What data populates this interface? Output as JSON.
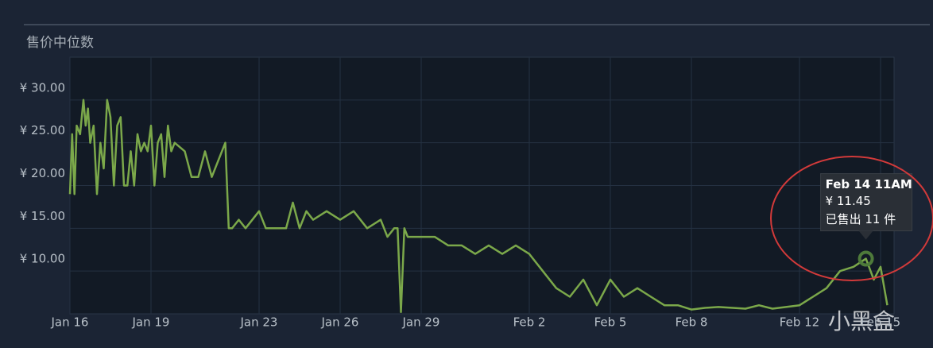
{
  "chart_data": {
    "type": "line",
    "title": "售价中位数",
    "x": [
      "Jan 16 12AM",
      "Jan 16 2AM",
      "Jan 16 4AM",
      "Jan 16 6AM",
      "Jan 16 9AM",
      "Jan 16 12PM",
      "Jan 16 2PM",
      "Jan 16 4PM",
      "Jan 16 6PM",
      "Jan 16 9PM",
      "Jan 17 12AM",
      "Jan 17 3AM",
      "Jan 17 6AM",
      "Jan 17 9AM",
      "Jan 17 12PM",
      "Jan 17 3PM",
      "Jan 17 6PM",
      "Jan 17 9PM",
      "Jan 18 12AM",
      "Jan 18 3AM",
      "Jan 18 6AM",
      "Jan 18 9AM",
      "Jan 18 12PM",
      "Jan 18 3PM",
      "Jan 18 6PM",
      "Jan 18 9PM",
      "Jan 19 12AM",
      "Jan 19 3AM",
      "Jan 19 6AM",
      "Jan 19 9AM",
      "Jan 19 12PM",
      "Jan 19 3PM",
      "Jan 19 6PM",
      "Jan 19 9PM",
      "Jan 20 6AM",
      "Jan 20 12PM",
      "Jan 20 6PM",
      "Jan 21 12AM",
      "Jan 21 6AM",
      "Jan 21 12PM",
      "Jan 21 6PM",
      "Jan 21 9PM",
      "Jan 22 12AM",
      "Jan 22 6AM",
      "Jan 22 12PM",
      "Jan 23 12AM",
      "Jan 23 6AM",
      "Jan 23 12PM",
      "Jan 24 12AM",
      "Jan 24 6AM",
      "Jan 24 12PM",
      "Jan 24 6PM",
      "Jan 25 12AM",
      "Jan 25 12PM",
      "Jan 26 12AM",
      "Jan 26 12PM",
      "Jan 27 12AM",
      "Jan 27 12PM",
      "Jan 27 6PM",
      "Jan 28 12AM",
      "Jan 28 3AM",
      "Jan 28 6AM",
      "Jan 28 9AM",
      "Jan 28 12PM",
      "Jan 29 12AM",
      "Jan 29 12PM",
      "Jan 30 12AM",
      "Jan 30 12PM",
      "Jan 31 12AM",
      "Jan 31 12PM",
      "Feb 1 12AM",
      "Feb 1 12PM",
      "Feb 2 12AM",
      "Feb 2 12PM",
      "Feb 3 12AM",
      "Feb 3 12PM",
      "Feb 4 12AM",
      "Feb 4 12PM",
      "Feb 5 12AM",
      "Feb 5 12PM",
      "Feb 6 12AM",
      "Feb 6 12PM",
      "Feb 7 12AM",
      "Feb 7 12PM",
      "Feb 8 12AM",
      "Feb 8 12PM",
      "Feb 9 12AM",
      "Feb 10 12AM",
      "Feb 10 12PM",
      "Feb 11 12AM",
      "Feb 12 12AM",
      "Feb 12 12PM",
      "Feb 13 12AM",
      "Feb 13 12PM",
      "Feb 14 12AM",
      "Feb 14 11AM",
      "Feb 14 6PM",
      "Feb 15 12AM",
      "Feb 15 6AM"
    ],
    "series": [
      {
        "name": "售价中位数",
        "color": "#7ba84a",
        "values": [
          19,
          26,
          19,
          27,
          26,
          30,
          27,
          29,
          25,
          27,
          19,
          25,
          22,
          30,
          28,
          20,
          27,
          28,
          20,
          20,
          24,
          20,
          26,
          24,
          25,
          24,
          27,
          20,
          25,
          26,
          21,
          27,
          24,
          25,
          24,
          21,
          21,
          24,
          21,
          23,
          25,
          15,
          15,
          16,
          15,
          17,
          15,
          15,
          15,
          18,
          15,
          17,
          16,
          17,
          16,
          17,
          15,
          16,
          14,
          15,
          15,
          5.2,
          15,
          14,
          14,
          14,
          13,
          13,
          12,
          13,
          12,
          13,
          12,
          10,
          8,
          7,
          9,
          6,
          9,
          7,
          8,
          7,
          6,
          6,
          5.5,
          5.7,
          5.8,
          5.6,
          6,
          5.6,
          6,
          7,
          8,
          10,
          10.5,
          11.45,
          9,
          10.5,
          6
        ]
      }
    ],
    "xlim": [
      "Jan 16 12AM",
      "Feb 15 12PM"
    ],
    "xticks": [
      {
        "value": "Jan 16 12AM",
        "label": "Jan 16"
      },
      {
        "value": "Jan 19 12AM",
        "label": "Jan 19"
      },
      {
        "value": "Jan 23 12AM",
        "label": "Jan 23"
      },
      {
        "value": "Jan 26 12AM",
        "label": "Jan 26"
      },
      {
        "value": "Jan 29 12AM",
        "label": "Jan 29"
      },
      {
        "value": "Feb 2 12AM",
        "label": "Feb 2"
      },
      {
        "value": "Feb 5 12AM",
        "label": "Feb 5"
      },
      {
        "value": "Feb 8 12AM",
        "label": "Feb 8"
      },
      {
        "value": "Feb 12 12AM",
        "label": "Feb 12"
      },
      {
        "value": "Feb 15 12AM",
        "label": "Feb 15"
      }
    ],
    "ylim": [
      5,
      35
    ],
    "yticks": [
      {
        "value": 10,
        "label": "¥ 10.00"
      },
      {
        "value": 15,
        "label": "¥ 15.00"
      },
      {
        "value": 20,
        "label": "¥ 20.00"
      },
      {
        "value": 25,
        "label": "¥ 25.00"
      },
      {
        "value": 30,
        "label": "¥ 30.00"
      }
    ],
    "grid": true,
    "tooltip": {
      "title": "Feb 14 11AM",
      "price": "¥ 11.45",
      "sold": "已售出 11 件"
    },
    "watermark": "小黑盒"
  }
}
